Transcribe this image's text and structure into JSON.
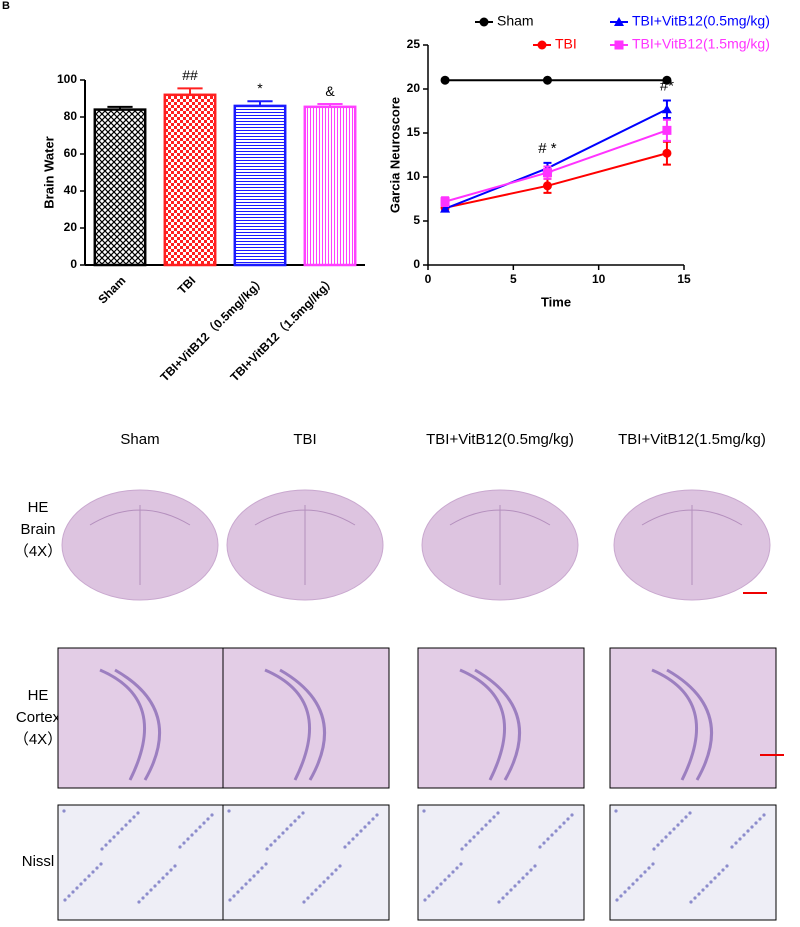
{
  "chart_data": [
    {
      "type": "bar",
      "ylabel": "Brain Water",
      "categories": [
        "Sham",
        "TBI",
        "TBI+VitB12（0.5mg//kg）",
        "TBI+VitB12（1.5mg//kg）"
      ],
      "values": [
        84,
        92,
        86,
        85.5
      ],
      "errors": [
        1.5,
        3.5,
        2.5,
        1.5
      ],
      "annotations": [
        null,
        "##",
        "*",
        "&"
      ],
      "colors": [
        "#000000",
        "#ff2020",
        "#1a1aff",
        "#ff40ff"
      ],
      "patterns": [
        "crosshatch",
        "checker",
        "horizontal",
        "vertical"
      ],
      "ylim": [
        0,
        100
      ],
      "yticks": [
        0,
        20,
        40,
        60,
        80,
        100
      ]
    },
    {
      "type": "line",
      "xlabel": "Time",
      "ylabel": "Garcia Neuroscore",
      "x": [
        1,
        7,
        14
      ],
      "annotations": [
        null,
        "# *",
        "#*"
      ],
      "series": [
        {
          "name": "Sham",
          "color": "#000000",
          "marker": "circle",
          "values": [
            21,
            21,
            21
          ],
          "errors": [
            0,
            0,
            0
          ]
        },
        {
          "name": "TBI",
          "color": "#ff0000",
          "marker": "circle",
          "values": [
            6.5,
            9,
            12.7
          ],
          "errors": [
            0.4,
            0.8,
            1.3
          ]
        },
        {
          "name": "TBI+VitB12(0.5mg/kg)",
          "color": "#0000ff",
          "marker": "triangle",
          "values": [
            6.4,
            11,
            17.7
          ],
          "errors": [
            0.3,
            0.6,
            1.0
          ]
        },
        {
          "name": "TBI+VitB12(1.5mg/kg)",
          "color": "#ff33ff",
          "marker": "square",
          "values": [
            7.2,
            10.5,
            15.3
          ],
          "errors": [
            0.5,
            0.7,
            1.2
          ]
        }
      ],
      "xlim": [
        0,
        15
      ],
      "xticks": [
        0,
        5,
        10,
        15
      ],
      "ylim": [
        0,
        25
      ],
      "yticks": [
        0,
        5,
        10,
        15,
        20,
        25
      ]
    }
  ],
  "figure": {
    "panel_label": "B",
    "columns": [
      "Sham",
      "TBI",
      "TBI+VitB12(0.5mg/kg)",
      "TBI+VitB12(1.5mg/kg)"
    ],
    "rows": [
      {
        "lines": [
          "HE",
          "Brain",
          "（4X）"
        ]
      },
      {
        "lines": [
          "HE",
          "Cortex",
          "（4X）"
        ]
      },
      {
        "lines": [
          "Nissl"
        ]
      }
    ]
  }
}
